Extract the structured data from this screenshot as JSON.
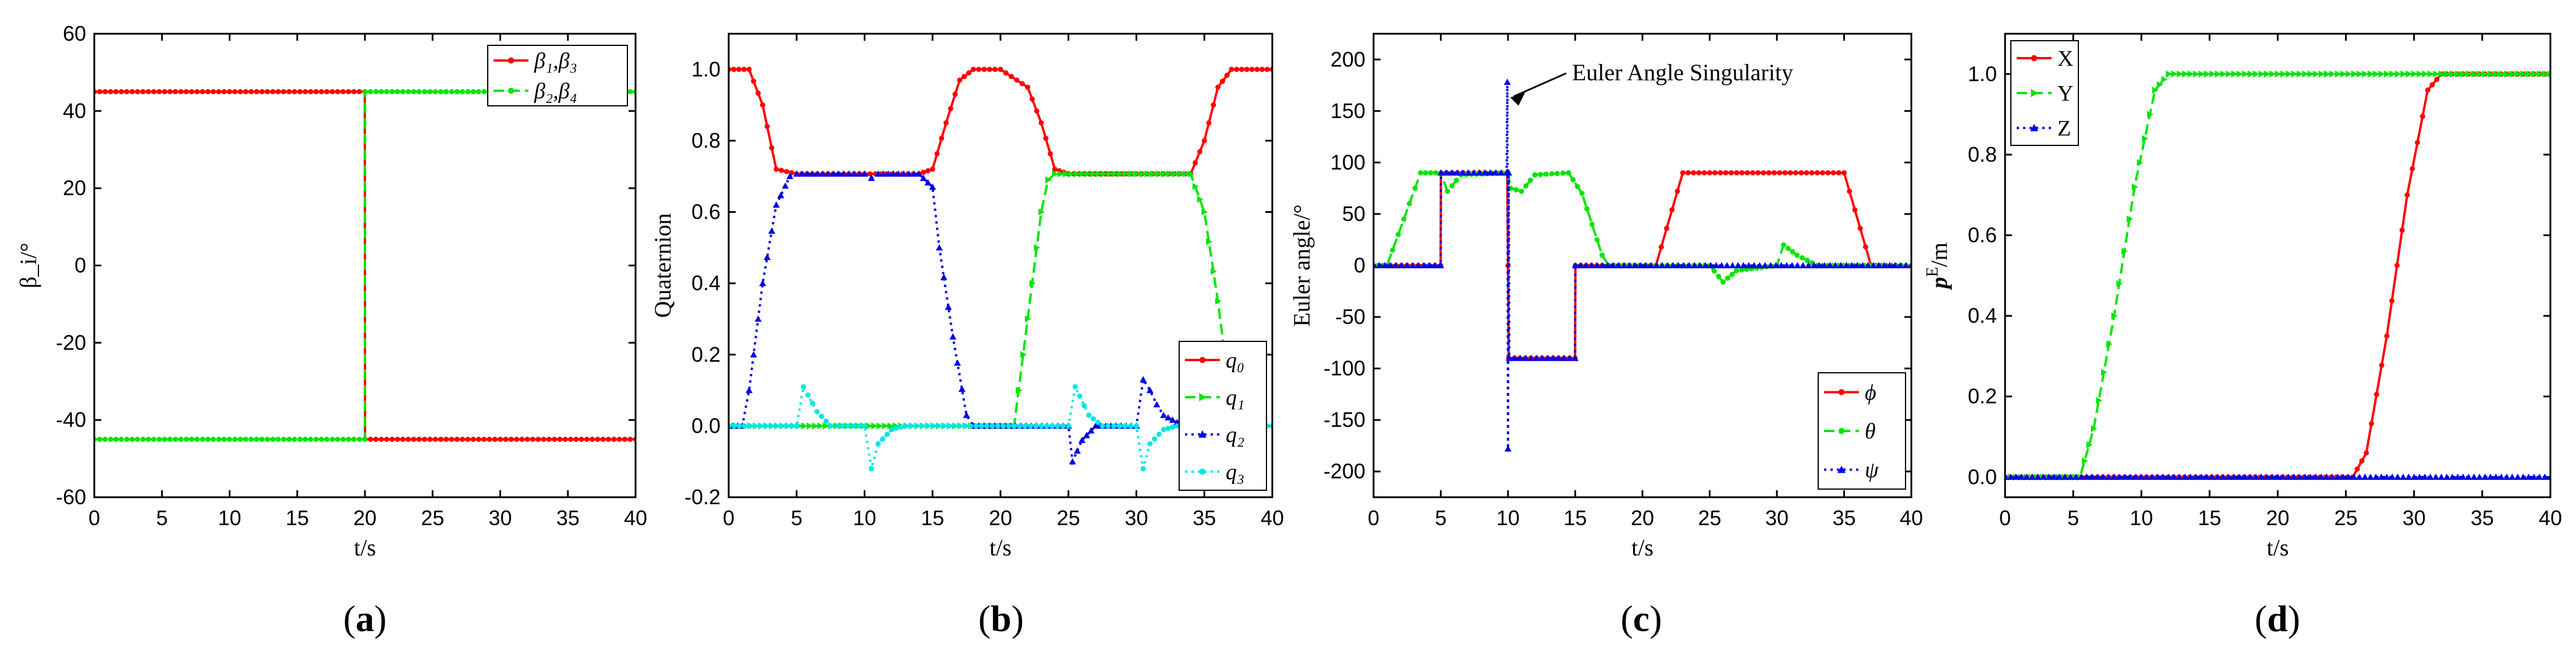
{
  "chart_data": [
    {
      "type": "line",
      "panel": "(a)",
      "xlabel": "t/s",
      "ylabel": "β_i/°",
      "xlim": [
        0,
        40
      ],
      "ylim": [
        -60,
        60
      ],
      "xticks": [
        0,
        5,
        10,
        15,
        20,
        25,
        30,
        35,
        40
      ],
      "yticks": [
        -60,
        -40,
        -20,
        0,
        20,
        40,
        60
      ],
      "x_tick_labels": [
        "0",
        "5",
        "10",
        "15",
        "20",
        "25",
        "30",
        "35",
        "40"
      ],
      "y_tick_labels": [
        "-60",
        "-40",
        "-20",
        "0",
        "20",
        "40",
        "60"
      ],
      "legend_position": "top-right",
      "series": [
        {
          "name": "β1,β3",
          "legend_label": "β₁,β₃",
          "color": "#ff0000",
          "dash": "solid",
          "marker": "circle",
          "x": [
            0,
            19.99,
            20.01,
            40
          ],
          "y": [
            45,
            45,
            -45,
            -45
          ]
        },
        {
          "name": "β2,β4",
          "legend_label": "β₂,β₄",
          "color": "#00e600",
          "dash": "dash",
          "marker": "circle",
          "x": [
            0,
            19.99,
            20.01,
            40
          ],
          "y": [
            -45,
            -45,
            45,
            45
          ]
        }
      ]
    },
    {
      "type": "line",
      "panel": "(b)",
      "xlabel": "t/s",
      "ylabel": "Quaternion",
      "xlim": [
        0,
        40
      ],
      "ylim": [
        -0.2,
        1.1
      ],
      "xticks": [
        0,
        5,
        10,
        15,
        20,
        25,
        30,
        35,
        40
      ],
      "yticks": [
        -0.2,
        0.0,
        0.2,
        0.4,
        0.6,
        0.8,
        1.0
      ],
      "x_tick_labels": [
        "0",
        "5",
        "10",
        "15",
        "20",
        "25",
        "30",
        "35",
        "40"
      ],
      "y_tick_labels": [
        "-0.2",
        "0.0",
        "0.2",
        "0.4",
        "0.6",
        "0.8",
        "1.0"
      ],
      "legend_position": "bottom-right",
      "series": [
        {
          "name": "q0",
          "legend_label": "q₀",
          "color": "#ff0000",
          "dash": "solid",
          "marker": "circle",
          "x": [
            0,
            1.5,
            2.5,
            3.5,
            5,
            10,
            14,
            15,
            16,
            17,
            18,
            20,
            22,
            23,
            24,
            25,
            30,
            34,
            35,
            36,
            37,
            40
          ],
          "y": [
            1.0,
            1.0,
            0.9,
            0.72,
            0.707,
            0.707,
            0.707,
            0.72,
            0.85,
            0.97,
            1.0,
            1.0,
            0.95,
            0.85,
            0.72,
            0.707,
            0.707,
            0.707,
            0.8,
            0.95,
            1.0,
            1.0
          ]
        },
        {
          "name": "q1",
          "legend_label": "q₁",
          "color": "#00e600",
          "dash": "dash",
          "marker": "triangle-right",
          "x": [
            0,
            21,
            22,
            23,
            23.5,
            24,
            30,
            34,
            35,
            36,
            36.5
          ],
          "y": [
            0.0,
            0.0,
            0.3,
            0.6,
            0.69,
            0.707,
            0.707,
            0.707,
            0.6,
            0.35,
            0.2
          ]
        },
        {
          "name": "q2",
          "legend_label": "q₂",
          "color": "#0000e6",
          "dash": "dot",
          "marker": "triangle-up",
          "x": [
            0,
            1,
            1.5,
            2.5,
            3.5,
            4.5,
            5,
            10,
            10.5,
            11,
            14,
            15,
            15.5,
            16.5,
            17.5,
            18,
            25,
            25.3,
            26,
            27,
            30,
            30.5,
            31,
            31.5,
            32,
            33,
            34
          ],
          "y": [
            0.0,
            0.0,
            0.1,
            0.4,
            0.62,
            0.7,
            0.707,
            0.707,
            0.695,
            0.707,
            0.707,
            0.67,
            0.5,
            0.25,
            0.03,
            0.0,
            0.0,
            -0.1,
            -0.04,
            0.0,
            0.0,
            0.13,
            0.1,
            0.06,
            0.03,
            0.01,
            0.0
          ]
        },
        {
          "name": "q3",
          "legend_label": "q₃",
          "color": "#00e6e6",
          "dash": "dot",
          "marker": "circle",
          "x": [
            0,
            5,
            5.5,
            6.5,
            7.5,
            8,
            10,
            10.5,
            11,
            12,
            13,
            25,
            25.5,
            26.5,
            27.5,
            30,
            30.5,
            31,
            32,
            33,
            35,
            40
          ],
          "y": [
            0.0,
            0.0,
            0.11,
            0.04,
            0.0,
            0.0,
            0.0,
            -0.12,
            -0.05,
            -0.01,
            0.0,
            0.0,
            0.11,
            0.03,
            0.0,
            0.0,
            -0.12,
            -0.05,
            -0.01,
            0.0,
            0.0,
            0.0
          ]
        }
      ]
    },
    {
      "type": "line",
      "panel": "(c)",
      "xlabel": "t/s",
      "ylabel": "Euler angle/°",
      "xlim": [
        0,
        40
      ],
      "ylim": [
        -225,
        225
      ],
      "xticks": [
        0,
        5,
        10,
        15,
        20,
        25,
        30,
        35,
        40
      ],
      "yticks": [
        -200,
        -150,
        -100,
        -50,
        0,
        50,
        100,
        150,
        200
      ],
      "x_tick_labels": [
        "0",
        "5",
        "10",
        "15",
        "20",
        "25",
        "30",
        "35",
        "40"
      ],
      "y_tick_labels": [
        "-200",
        "-150",
        "-100",
        "-50",
        "0",
        "50",
        "100",
        "150",
        "200"
      ],
      "legend_position": "bottom-right",
      "annotation": {
        "text": "Euler Angle Singularity",
        "x": 10,
        "y": 180
      },
      "series": [
        {
          "name": "phi",
          "legend_label": "ϕ",
          "color": "#ff0000",
          "dash": "solid",
          "marker": "circle",
          "x": [
            0,
            4.99,
            5.01,
            9.95,
            10.0,
            10.05,
            14.99,
            15.01,
            21,
            23,
            35,
            37,
            40
          ],
          "y": [
            0,
            0,
            90,
            90,
            0,
            -90,
            -90,
            0,
            0,
            90,
            90,
            0,
            0
          ]
        },
        {
          "name": "theta",
          "legend_label": "θ",
          "color": "#00e600",
          "dash": "dash",
          "marker": "circle",
          "x": [
            0,
            1,
            3.5,
            5,
            5.5,
            6.5,
            10,
            10.2,
            11,
            12,
            14.5,
            15.5,
            17,
            17.5,
            25,
            26,
            27,
            30,
            30.5,
            31.5,
            33,
            40
          ],
          "y": [
            0,
            0,
            90,
            90,
            72,
            88,
            90,
            75,
            72,
            88,
            90,
            70,
            10,
            0,
            0,
            -16,
            -5,
            0,
            20,
            10,
            0,
            0
          ]
        },
        {
          "name": "psi",
          "legend_label": "ψ",
          "color": "#0000e6",
          "dash": "dot",
          "marker": "triangle-up",
          "x": [
            0,
            4.99,
            5.01,
            9.9,
            9.95,
            10.0,
            10.05,
            10.1,
            14.99,
            15.01,
            40
          ],
          "y": [
            0,
            0,
            90,
            90,
            178,
            -178,
            90,
            -90,
            -90,
            0,
            0
          ]
        }
      ]
    },
    {
      "type": "line",
      "panel": "(d)",
      "xlabel": "t/s",
      "ylabel": "p^E/m",
      "ylabel_main": "p",
      "ylabel_sup": "E",
      "ylabel_unit": "/m",
      "xlim": [
        0,
        40
      ],
      "ylim": [
        -0.05,
        1.1
      ],
      "xticks": [
        0,
        5,
        10,
        15,
        20,
        25,
        30,
        35,
        40
      ],
      "yticks": [
        0.0,
        0.2,
        0.4,
        0.6,
        0.8,
        1.0
      ],
      "x_tick_labels": [
        "0",
        "5",
        "10",
        "15",
        "20",
        "25",
        "30",
        "35",
        "40"
      ],
      "y_tick_labels": [
        "0.0",
        "0.2",
        "0.4",
        "0.6",
        "0.8",
        "1.0"
      ],
      "legend_position": "top-left",
      "series": [
        {
          "name": "X",
          "legend_label": "X",
          "color": "#ff0000",
          "dash": "solid",
          "marker": "circle",
          "x": [
            0,
            25.5,
            26.5,
            28,
            29.5,
            31,
            32,
            40
          ],
          "y": [
            0.0,
            0.0,
            0.06,
            0.35,
            0.7,
            0.96,
            1.0,
            1.0
          ]
        },
        {
          "name": "Y",
          "legend_label": "Y",
          "color": "#00e600",
          "dash": "dash",
          "marker": "triangle-right",
          "x": [
            0,
            5.5,
            6.5,
            8,
            9.5,
            11,
            12,
            40
          ],
          "y": [
            0.0,
            0.0,
            0.12,
            0.4,
            0.72,
            0.96,
            1.0,
            1.0
          ]
        },
        {
          "name": "Z",
          "legend_label": "Z",
          "color": "#0000e6",
          "dash": "dot",
          "marker": "triangle-up",
          "x": [
            0,
            40
          ],
          "y": [
            0.0,
            0.0
          ]
        }
      ]
    }
  ]
}
